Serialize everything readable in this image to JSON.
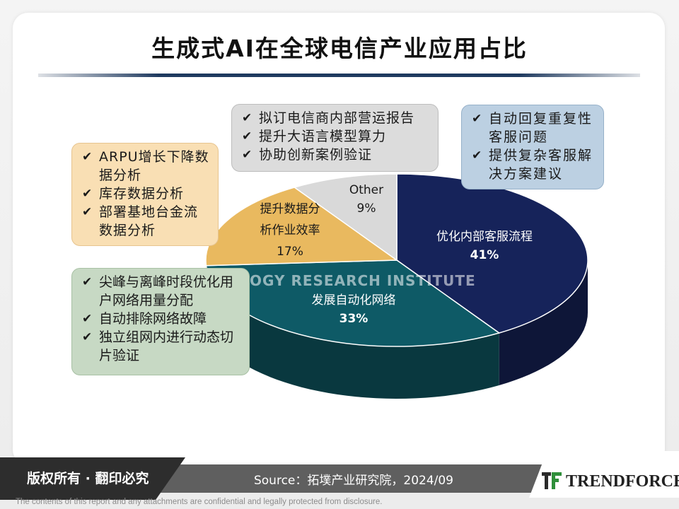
{
  "title": "生成式AI在全球电信产业应用占比",
  "chart_data": {
    "type": "pie",
    "title": "生成式AI在全球电信产业应用占比",
    "slices": [
      {
        "label": "优化内部客服流程",
        "value": 41,
        "display": "41%",
        "color": "#16235a"
      },
      {
        "label": "发展自动化网络",
        "value": 33,
        "display": "33%",
        "color": "#0e5a66"
      },
      {
        "label": "提升数据分析作业效率",
        "label_lines": [
          "提升数据分",
          "析作业效率"
        ],
        "value": 17,
        "display": "17%",
        "color": "#e9b95f"
      },
      {
        "label": "Other",
        "value": 9,
        "display": "9%",
        "color": "#d9d9d9"
      }
    ]
  },
  "callouts": {
    "data_analysis": [
      "ARPU增长下降数据分析",
      "库存数据分析",
      "部署基地台金流数据分析"
    ],
    "other": [
      "拟订电信商内部营运报告",
      "提升大语言模型算力",
      "协助创新案例验证"
    ],
    "customer_service": [
      "自动回复重复性客服问题",
      "提供复杂客服解决方案建议"
    ],
    "automation": [
      "尖峰与离峰时段优化用户网络用量分配",
      "自动排除网络故障",
      "独立组网内进行动态切片验证"
    ]
  },
  "watermark": "OLOGY RESEARCH INSTITUTE",
  "footer": {
    "copyright": "版权所有 · 翻印必究",
    "source": "Source：拓墣产业研究院，2024/09",
    "brand": "TRENDFORCE",
    "disclaimer": "The contents of this report and any attachments are confidential and legally protected from disclosure."
  },
  "colors": {
    "title_rule": "#1f3a5f",
    "callout_orange": "#f9dfb4",
    "callout_gray": "#dcdcdc",
    "callout_blue": "#bcd0e2",
    "callout_green": "#c7d9c4"
  }
}
